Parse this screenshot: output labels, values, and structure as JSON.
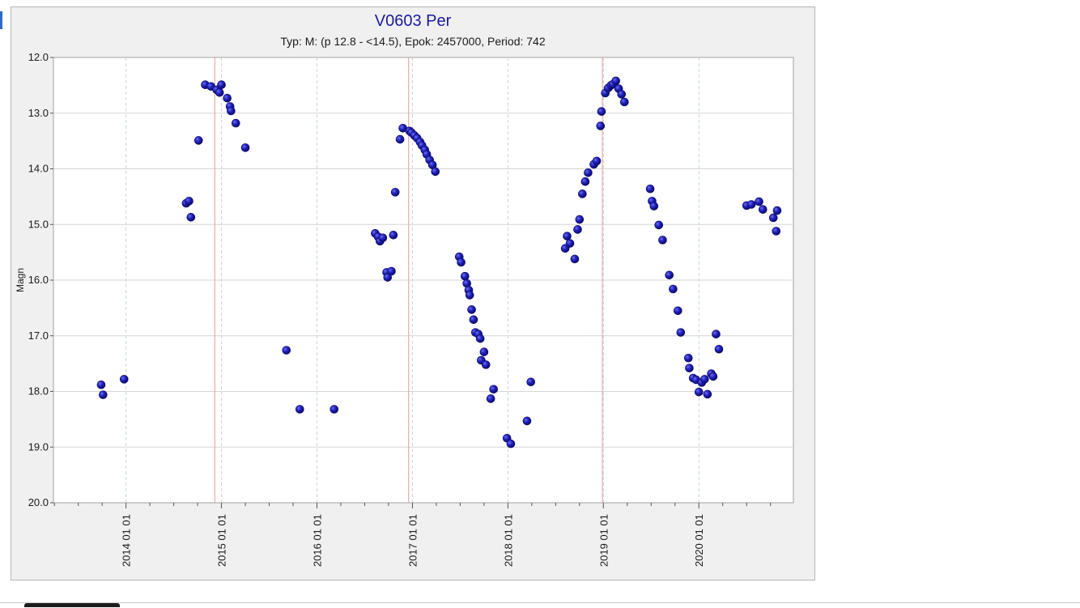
{
  "chart_data": {
    "type": "scatter",
    "title": "V0603 Per",
    "subtitle": "Typ: M: (p 12.8 - <14.5), Epok: 2457000, Period: 742",
    "ylabel": "Magn",
    "xlabel": "",
    "ylim": [
      20.0,
      12.0
    ],
    "y_inverted": true,
    "y_ticks": [
      "12.0",
      "13.0",
      "14.0",
      "15.0",
      "16.0",
      "17.0",
      "18.0",
      "19.0",
      "20.0"
    ],
    "x_ticks": [
      "2014 01 01",
      "2015 01 01",
      "2016 01 01",
      "2017 01 01",
      "2018 01 01",
      "2019 01 01",
      "2020 01 01"
    ],
    "x_tick_values": [
      2014.0,
      2015.0,
      2016.0,
      2017.0,
      2018.0,
      2019.0,
      2020.0
    ],
    "xlim": [
      2013.24,
      2020.99
    ],
    "maxima_lines": [
      2014.93,
      2016.96,
      2018.99
    ],
    "grid": true,
    "colors": {
      "point": "#1a1aa8",
      "maxima_line": "#e89a9a",
      "title": "#1a1aa0",
      "grid": "#d6d6d6"
    },
    "points": [
      [
        2013.74,
        17.88
      ],
      [
        2013.76,
        18.06
      ],
      [
        2013.98,
        17.78
      ],
      [
        2014.63,
        14.62
      ],
      [
        2014.66,
        14.58
      ],
      [
        2014.68,
        14.87
      ],
      [
        2014.76,
        13.49
      ],
      [
        2014.83,
        12.49
      ],
      [
        2014.89,
        12.52
      ],
      [
        2014.95,
        12.58
      ],
      [
        2014.98,
        12.63
      ],
      [
        2015.0,
        12.49
      ],
      [
        2015.06,
        12.73
      ],
      [
        2015.09,
        12.88
      ],
      [
        2015.1,
        12.96
      ],
      [
        2015.15,
        13.18
      ],
      [
        2015.25,
        13.62
      ],
      [
        2015.68,
        17.26
      ],
      [
        2015.82,
        18.32
      ],
      [
        2016.18,
        18.32
      ],
      [
        2016.61,
        15.16
      ],
      [
        2016.64,
        15.22
      ],
      [
        2016.66,
        15.3
      ],
      [
        2016.69,
        15.24
      ],
      [
        2016.73,
        15.86
      ],
      [
        2016.74,
        15.95
      ],
      [
        2016.78,
        15.84
      ],
      [
        2016.8,
        15.19
      ],
      [
        2016.82,
        14.42
      ],
      [
        2016.87,
        13.47
      ],
      [
        2016.9,
        13.27
      ],
      [
        2016.97,
        13.32
      ],
      [
        2016.99,
        13.35
      ],
      [
        2017.02,
        13.4
      ],
      [
        2017.05,
        13.45
      ],
      [
        2017.08,
        13.52
      ],
      [
        2017.1,
        13.58
      ],
      [
        2017.13,
        13.66
      ],
      [
        2017.15,
        13.74
      ],
      [
        2017.18,
        13.84
      ],
      [
        2017.21,
        13.93
      ],
      [
        2017.24,
        14.05
      ],
      [
        2017.49,
        15.58
      ],
      [
        2017.51,
        15.68
      ],
      [
        2017.55,
        15.93
      ],
      [
        2017.57,
        16.06
      ],
      [
        2017.59,
        16.18
      ],
      [
        2017.6,
        16.27
      ],
      [
        2017.62,
        16.53
      ],
      [
        2017.64,
        16.71
      ],
      [
        2017.66,
        16.94
      ],
      [
        2017.69,
        16.97
      ],
      [
        2017.71,
        17.05
      ],
      [
        2017.72,
        17.44
      ],
      [
        2017.75,
        17.29
      ],
      [
        2017.77,
        17.52
      ],
      [
        2017.82,
        18.13
      ],
      [
        2017.85,
        17.96
      ],
      [
        2017.99,
        18.84
      ],
      [
        2018.03,
        18.94
      ],
      [
        2018.2,
        18.53
      ],
      [
        2018.24,
        17.83
      ],
      [
        2018.6,
        15.43
      ],
      [
        2018.62,
        15.21
      ],
      [
        2018.65,
        15.34
      ],
      [
        2018.7,
        15.62
      ],
      [
        2018.73,
        15.09
      ],
      [
        2018.75,
        14.91
      ],
      [
        2018.78,
        14.45
      ],
      [
        2018.81,
        14.23
      ],
      [
        2018.84,
        14.07
      ],
      [
        2018.9,
        13.92
      ],
      [
        2018.93,
        13.86
      ],
      [
        2018.97,
        13.23
      ],
      [
        2018.98,
        12.97
      ],
      [
        2019.02,
        12.64
      ],
      [
        2019.05,
        12.55
      ],
      [
        2019.08,
        12.5
      ],
      [
        2019.1,
        12.48
      ],
      [
        2019.13,
        12.42
      ],
      [
        2019.16,
        12.56
      ],
      [
        2019.19,
        12.66
      ],
      [
        2019.22,
        12.8
      ],
      [
        2019.49,
        14.36
      ],
      [
        2019.51,
        14.58
      ],
      [
        2019.53,
        14.67
      ],
      [
        2019.58,
        15.01
      ],
      [
        2019.62,
        15.28
      ],
      [
        2019.69,
        15.91
      ],
      [
        2019.73,
        16.16
      ],
      [
        2019.78,
        16.55
      ],
      [
        2019.81,
        16.94
      ],
      [
        2019.89,
        17.4
      ],
      [
        2019.9,
        17.58
      ],
      [
        2019.94,
        17.76
      ],
      [
        2019.97,
        17.79
      ],
      [
        2020.0,
        18.01
      ],
      [
        2020.03,
        17.84
      ],
      [
        2020.06,
        17.78
      ],
      [
        2020.09,
        18.05
      ],
      [
        2020.13,
        17.68
      ],
      [
        2020.15,
        17.73
      ],
      [
        2020.18,
        16.97
      ],
      [
        2020.21,
        17.24
      ],
      [
        2020.5,
        14.66
      ],
      [
        2020.55,
        14.64
      ],
      [
        2020.63,
        14.59
      ],
      [
        2020.67,
        14.73
      ],
      [
        2020.78,
        14.88
      ],
      [
        2020.82,
        14.75
      ],
      [
        2020.81,
        15.12
      ]
    ]
  }
}
